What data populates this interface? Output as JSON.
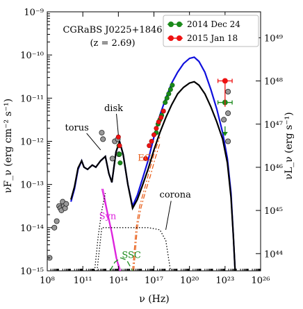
{
  "chart_data": {
    "type": "line",
    "title": "CGRaBS J0225+1846",
    "subtitle": "(z = 2.69)",
    "xlabel": "ν (Hz)",
    "ylabel": "νF_ν (erg cm⁻² s⁻¹)",
    "y2label": "νL_ν (erg s⁻¹)",
    "xscale": "log",
    "yscale": "log",
    "xlim": [
      100000000.0,
      1e+26
    ],
    "ylim": [
      1e-15,
      1e-09
    ],
    "y2lim": [
      4e+43,
      4e+49
    ],
    "grid": false,
    "legend_position": "top-right",
    "xticks": [
      {
        "v": 8,
        "label": "10⁸"
      },
      {
        "v": 11,
        "label": "10¹¹"
      },
      {
        "v": 14,
        "label": "10¹⁴"
      },
      {
        "v": 17,
        "label": "10¹⁷"
      },
      {
        "v": 20,
        "label": "10²⁰"
      },
      {
        "v": 23,
        "label": "10²³"
      },
      {
        "v": 26,
        "label": "10²⁶"
      }
    ],
    "yticks": [
      {
        "v": -15,
        "label": "10⁻¹⁵"
      },
      {
        "v": -14,
        "label": "10⁻¹⁴"
      },
      {
        "v": -13,
        "label": "10⁻¹³"
      },
      {
        "v": -12,
        "label": "10⁻¹²"
      },
      {
        "v": -11,
        "label": "10⁻¹¹"
      },
      {
        "v": -10,
        "label": "10⁻¹⁰"
      },
      {
        "v": -9,
        "label": "10⁻⁹"
      }
    ],
    "y2ticks": [
      {
        "v": 44,
        "label": "10⁴⁴"
      },
      {
        "v": 45,
        "label": "10⁴⁵"
      },
      {
        "v": 46,
        "label": "10⁴⁶"
      },
      {
        "v": 47,
        "label": "10⁴⁷"
      },
      {
        "v": 48,
        "label": "10⁴⁸"
      },
      {
        "v": 49,
        "label": "10⁴⁹"
      }
    ],
    "legend": [
      {
        "label": "2014 Dec 24",
        "color": "#1a8a1a"
      },
      {
        "label": "2015 Jan 18",
        "color": "#ee1111"
      }
    ],
    "annotations": [
      {
        "text": "torus",
        "x": 10.5,
        "y": -11.75,
        "color": "#000000"
      },
      {
        "text": "disk",
        "x": 13.6,
        "y": -11.3,
        "color": "#000000"
      },
      {
        "text": "EC",
        "x": 16.2,
        "y": -12.45,
        "color": "#e8601c"
      },
      {
        "text": "Syn",
        "x": 13.1,
        "y": -13.8,
        "color": "#dd22dd"
      },
      {
        "text": "SSC",
        "x": 15.1,
        "y": -14.7,
        "color": "#1a8a1a"
      },
      {
        "text": "corona",
        "x": 18.8,
        "y": -13.3,
        "color": "#000000"
      }
    ],
    "series": [
      {
        "name": "2014 Dec 24",
        "kind": "model",
        "color": "#1010dd",
        "points": [
          [
            10.0,
            -13.4
          ],
          [
            10.3,
            -13.1
          ],
          [
            10.6,
            -12.65
          ],
          [
            10.9,
            -12.45
          ],
          [
            11.1,
            -12.6
          ],
          [
            11.4,
            -12.65
          ],
          [
            11.8,
            -12.55
          ],
          [
            12.1,
            -12.6
          ],
          [
            12.5,
            -12.45
          ],
          [
            12.9,
            -12.35
          ],
          [
            13.2,
            -12.75
          ],
          [
            13.45,
            -12.95
          ],
          [
            13.8,
            -12.25
          ],
          [
            14.1,
            -12.0
          ],
          [
            14.4,
            -12.3
          ],
          [
            14.8,
            -13.0
          ],
          [
            15.2,
            -13.5
          ],
          [
            15.6,
            -13.25
          ],
          [
            16.0,
            -12.9
          ],
          [
            16.5,
            -12.45
          ],
          [
            17.0,
            -11.9
          ],
          [
            17.5,
            -11.4
          ],
          [
            18.0,
            -11.0
          ],
          [
            18.5,
            -10.65
          ],
          [
            19.0,
            -10.4
          ],
          [
            19.5,
            -10.2
          ],
          [
            20.0,
            -10.08
          ],
          [
            20.4,
            -10.05
          ],
          [
            20.8,
            -10.15
          ],
          [
            21.3,
            -10.4
          ],
          [
            21.8,
            -10.8
          ],
          [
            22.3,
            -11.25
          ],
          [
            22.8,
            -11.8
          ],
          [
            23.2,
            -12.4
          ],
          [
            23.5,
            -13.2
          ],
          [
            23.7,
            -14.2
          ],
          [
            23.85,
            -15.0
          ]
        ]
      },
      {
        "name": "2015 Jan 18",
        "kind": "model",
        "color": "#000000",
        "points": [
          [
            10.0,
            -13.35
          ],
          [
            10.3,
            -13.05
          ],
          [
            10.6,
            -12.62
          ],
          [
            10.9,
            -12.45
          ],
          [
            11.1,
            -12.6
          ],
          [
            11.4,
            -12.65
          ],
          [
            11.8,
            -12.55
          ],
          [
            12.1,
            -12.6
          ],
          [
            12.5,
            -12.45
          ],
          [
            12.9,
            -12.35
          ],
          [
            13.2,
            -12.75
          ],
          [
            13.45,
            -12.95
          ],
          [
            13.8,
            -12.25
          ],
          [
            14.1,
            -12.0
          ],
          [
            14.4,
            -12.3
          ],
          [
            14.8,
            -13.0
          ],
          [
            15.2,
            -13.55
          ],
          [
            15.6,
            -13.35
          ],
          [
            16.0,
            -13.05
          ],
          [
            16.5,
            -12.65
          ],
          [
            17.0,
            -12.2
          ],
          [
            17.5,
            -11.8
          ],
          [
            18.0,
            -11.45
          ],
          [
            18.5,
            -11.15
          ],
          [
            19.0,
            -10.9
          ],
          [
            19.5,
            -10.75
          ],
          [
            20.0,
            -10.65
          ],
          [
            20.4,
            -10.62
          ],
          [
            20.8,
            -10.7
          ],
          [
            21.3,
            -10.9
          ],
          [
            21.8,
            -11.2
          ],
          [
            22.3,
            -11.55
          ],
          [
            22.8,
            -11.95
          ],
          [
            23.2,
            -12.5
          ],
          [
            23.5,
            -13.3
          ],
          [
            23.7,
            -14.2
          ],
          [
            23.85,
            -15.0
          ]
        ]
      },
      {
        "name": "Syn",
        "kind": "component",
        "color": "#dd22dd",
        "dash": "",
        "points": [
          [
            12.6,
            -13.1
          ],
          [
            13.0,
            -13.6
          ],
          [
            13.4,
            -14.1
          ],
          [
            13.8,
            -14.7
          ],
          [
            14.1,
            -15.0
          ]
        ]
      },
      {
        "name": "Syn (2)",
        "kind": "component",
        "color": "#dd22dd",
        "dash": "",
        "points": [
          [
            12.7,
            -13.1
          ],
          [
            13.1,
            -13.65
          ],
          [
            13.5,
            -14.15
          ],
          [
            13.9,
            -14.75
          ],
          [
            14.2,
            -15.0
          ]
        ]
      },
      {
        "name": "EC",
        "kind": "component",
        "color": "#e8601c",
        "dash": "7,3,2,3",
        "points": [
          [
            15.2,
            -15.0
          ],
          [
            15.5,
            -14.0
          ],
          [
            15.8,
            -13.5
          ],
          [
            16.2,
            -13.1
          ],
          [
            16.6,
            -12.7
          ],
          [
            17.0,
            -12.3
          ],
          [
            17.5,
            -11.9
          ]
        ]
      },
      {
        "name": "EC (2)",
        "kind": "component",
        "color": "#e8601c",
        "dash": "7,3,2,3",
        "points": [
          [
            15.3,
            -15.0
          ],
          [
            15.6,
            -14.0
          ],
          [
            15.9,
            -13.55
          ],
          [
            16.3,
            -13.15
          ],
          [
            16.7,
            -12.8
          ],
          [
            17.1,
            -12.4
          ],
          [
            17.5,
            -12.05
          ]
        ]
      },
      {
        "name": "SSC",
        "kind": "component",
        "color": "#1a8a1a",
        "dash": "8,4",
        "points": [
          [
            13.3,
            -15.0
          ],
          [
            13.7,
            -14.8
          ],
          [
            14.2,
            -14.7
          ],
          [
            14.7,
            -14.75
          ],
          [
            15.2,
            -15.0
          ]
        ]
      },
      {
        "name": "corona",
        "kind": "component",
        "color": "#000000",
        "dash": "1.5,2.5",
        "points": [
          [
            12.2,
            -15.0
          ],
          [
            12.6,
            -14.0
          ],
          [
            13.2,
            -14.0
          ],
          [
            15.0,
            -14.0
          ],
          [
            16.5,
            -14.0
          ],
          [
            17.5,
            -14.05
          ],
          [
            18.0,
            -14.3
          ],
          [
            18.4,
            -15.0
          ]
        ]
      },
      {
        "name": "torus",
        "kind": "component",
        "color": "#000000",
        "dash": "1.5,2.5",
        "points": [
          [
            12.0,
            -15.0
          ],
          [
            12.3,
            -14.2
          ],
          [
            12.6,
            -13.6
          ],
          [
            12.9,
            -13.2
          ]
        ]
      }
    ],
    "archival_points": [
      [
        8.2,
        -14.7
      ],
      [
        8.6,
        -14.0
      ],
      [
        8.8,
        -13.85
      ],
      [
        9.0,
        -13.5
      ],
      [
        9.1,
        -13.55
      ],
      [
        9.2,
        -13.6
      ],
      [
        9.3,
        -13.4
      ],
      [
        9.4,
        -13.5
      ],
      [
        9.5,
        -13.55
      ],
      [
        9.6,
        -13.45
      ],
      [
        12.6,
        -11.8
      ],
      [
        12.7,
        -11.95
      ],
      [
        13.5,
        -12.4
      ],
      [
        13.7,
        -12.0
      ],
      [
        13.95,
        -11.95
      ],
      [
        14.05,
        -12.3
      ],
      [
        23.25,
        -12.0
      ],
      [
        23.25,
        -11.35
      ],
      [
        23.25,
        -10.85
      ],
      [
        22.9,
        -11.5
      ]
    ],
    "observations_2014": [
      [
        14.05,
        -12.1
      ],
      [
        14.1,
        -12.3
      ],
      [
        14.15,
        -12.5
      ],
      [
        17.2,
        -11.8
      ],
      [
        17.35,
        -11.6
      ],
      [
        17.5,
        -11.5
      ],
      [
        17.65,
        -11.4
      ],
      [
        17.8,
        -11.3
      ],
      [
        17.95,
        -11.1
      ],
      [
        18.1,
        -11.0
      ],
      [
        18.25,
        -10.9
      ],
      [
        18.4,
        -10.8
      ],
      [
        18.55,
        -10.7
      ]
    ],
    "observations_2015": [
      [
        14.0,
        -11.9
      ],
      [
        14.1,
        -12.1
      ],
      [
        16.3,
        -12.4
      ],
      [
        16.6,
        -12.1
      ],
      [
        16.8,
        -12.0
      ],
      [
        17.0,
        -11.85
      ],
      [
        17.2,
        -11.7
      ],
      [
        17.4,
        -11.55
      ],
      [
        17.6,
        -11.45
      ],
      [
        17.8,
        -11.3
      ]
    ],
    "gamma_2014": [
      {
        "x": 23.0,
        "y": -11.1,
        "xlo": 22.4,
        "xhi": 23.6
      },
      {
        "x": 23.0,
        "y": -11.75,
        "upper_limit": true
      }
    ],
    "gamma_2015": [
      {
        "x": 23.0,
        "y": -10.6,
        "xlo": 22.4,
        "xhi": 23.6,
        "ylo": -11.2
      }
    ]
  }
}
